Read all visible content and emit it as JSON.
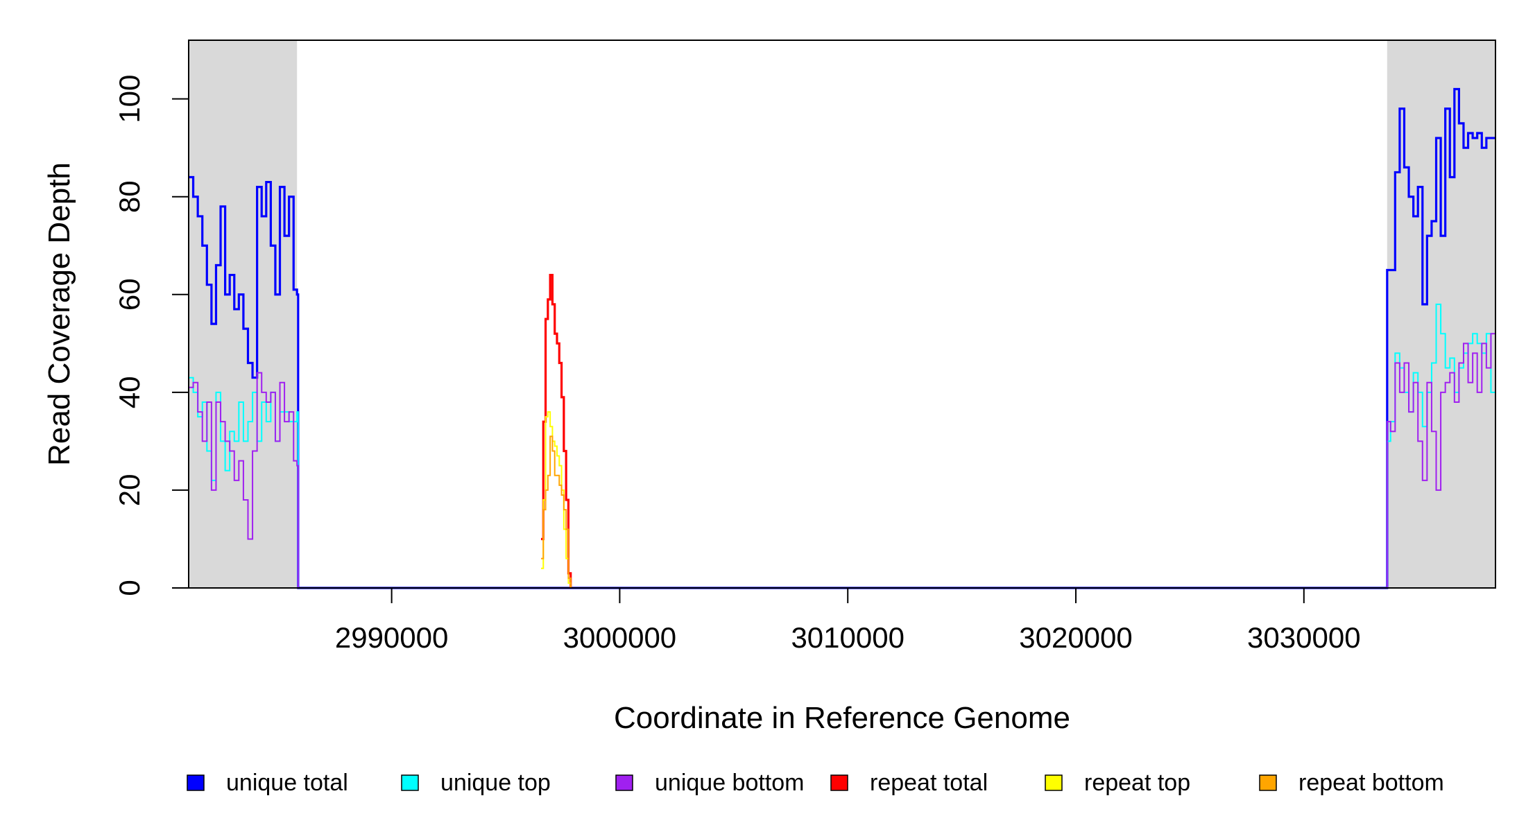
{
  "chart_data": {
    "type": "line",
    "xlabel": "Coordinate in Reference Genome",
    "ylabel": "Read Coverage Depth",
    "xlim": [
      2981100,
      3038400
    ],
    "ylim": [
      0,
      112
    ],
    "xticks": [
      2990000,
      3000000,
      3010000,
      3020000,
      3030000
    ],
    "xtick_labels": [
      "2990000",
      "3000000",
      "3010000",
      "3020000",
      "3030000"
    ],
    "yticks": [
      0,
      20,
      40,
      60,
      80,
      100
    ],
    "ytick_labels": [
      "0",
      "20",
      "40",
      "60",
      "80",
      "100"
    ],
    "shaded_regions": [
      [
        2981100,
        2985850
      ],
      [
        3033650,
        3038400
      ]
    ],
    "shade_color": "#d9d9d9",
    "legend": {
      "position": "bottom",
      "entries": [
        {
          "label": "unique total",
          "color": "#0000ff"
        },
        {
          "label": "unique top",
          "color": "#00ffff"
        },
        {
          "label": "unique bottom",
          "color": "#a020f0"
        },
        {
          "label": "repeat total",
          "color": "#ff0000"
        },
        {
          "label": "repeat top",
          "color": "#ffff00"
        },
        {
          "label": "repeat bottom",
          "color": "#ffa500"
        }
      ]
    },
    "series": [
      {
        "name": "unique total",
        "color": "#0000ff",
        "x": [
          2981100,
          2981300,
          2981500,
          2981700,
          2981900,
          2982100,
          2982300,
          2982500,
          2982700,
          2982900,
          2983100,
          2983300,
          2983500,
          2983700,
          2983900,
          2984100,
          2984300,
          2984500,
          2984700,
          2984900,
          2985100,
          2985300,
          2985500,
          2985700,
          2985850,
          2985900,
          2996500,
          2997000,
          2997500,
          2998000,
          3033600,
          3033650,
          3033800,
          3034000,
          3034200,
          3034400,
          3034600,
          3034800,
          3035000,
          3035200,
          3035400,
          3035600,
          3035800,
          3036000,
          3036200,
          3036400,
          3036600,
          3036800,
          3037000,
          3037200,
          3037400,
          3037600,
          3037800,
          3038000,
          3038200,
          3038400
        ],
        "y": [
          84,
          80,
          76,
          70,
          62,
          54,
          66,
          78,
          60,
          64,
          57,
          60,
          53,
          46,
          43,
          82,
          76,
          83,
          70,
          60,
          82,
          72,
          80,
          61,
          60,
          0,
          0,
          0,
          0,
          0,
          0,
          65,
          65,
          85,
          98,
          86,
          80,
          76,
          82,
          58,
          72,
          75,
          92,
          72,
          98,
          84,
          102,
          95,
          90,
          93,
          92,
          93,
          90,
          92,
          92,
          92
        ]
      },
      {
        "name": "unique top",
        "color": "#00ffff",
        "x": [
          2981100,
          2981300,
          2981500,
          2981700,
          2981900,
          2982100,
          2982300,
          2982500,
          2982700,
          2982900,
          2983100,
          2983300,
          2983500,
          2983700,
          2983900,
          2984100,
          2984300,
          2984500,
          2984700,
          2984900,
          2985100,
          2985300,
          2985500,
          2985700,
          2985850,
          2985900,
          3033600,
          3033650,
          3033800,
          3034000,
          3034200,
          3034400,
          3034600,
          3034800,
          3035000,
          3035200,
          3035400,
          3035600,
          3035800,
          3036000,
          3036200,
          3036400,
          3036600,
          3036800,
          3037000,
          3037200,
          3037400,
          3037600,
          3037800,
          3038000,
          3038200,
          3038400
        ],
        "y": [
          43,
          40,
          35,
          38,
          28,
          22,
          40,
          30,
          24,
          32,
          30,
          38,
          30,
          34,
          40,
          30,
          38,
          34,
          40,
          30,
          36,
          36,
          34,
          34,
          36,
          0,
          0,
          30,
          34,
          48,
          45,
          40,
          36,
          44,
          40,
          33,
          40,
          46,
          58,
          52,
          45,
          47,
          40,
          45,
          48,
          50,
          52,
          50,
          48,
          52,
          40,
          38
        ]
      },
      {
        "name": "unique bottom",
        "color": "#a020f0",
        "x": [
          2981100,
          2981300,
          2981500,
          2981700,
          2981900,
          2982100,
          2982300,
          2982500,
          2982700,
          2982900,
          2983100,
          2983300,
          2983500,
          2983700,
          2983900,
          2984100,
          2984300,
          2984500,
          2984700,
          2984900,
          2985100,
          2985300,
          2985500,
          2985700,
          2985850,
          2985900,
          3033600,
          3033650,
          3033800,
          3034000,
          3034200,
          3034400,
          3034600,
          3034800,
          3035000,
          3035200,
          3035400,
          3035600,
          3035800,
          3036000,
          3036200,
          3036400,
          3036600,
          3036800,
          3037000,
          3037200,
          3037400,
          3037600,
          3037800,
          3038000,
          3038200,
          3038400
        ],
        "y": [
          41,
          42,
          36,
          30,
          38,
          20,
          38,
          34,
          30,
          28,
          22,
          26,
          18,
          10,
          28,
          44,
          40,
          38,
          40,
          30,
          42,
          34,
          36,
          26,
          25,
          0,
          0,
          34,
          32,
          46,
          40,
          46,
          36,
          42,
          30,
          22,
          42,
          32,
          20,
          40,
          42,
          44,
          38,
          46,
          50,
          42,
          48,
          40,
          50,
          45,
          52,
          52
        ]
      },
      {
        "name": "repeat total",
        "color": "#ff0000",
        "x": [
          2996550,
          2996650,
          2996750,
          2996850,
          2996950,
          2997050,
          2997150,
          2997250,
          2997350,
          2997450,
          2997550,
          2997650,
          2997750,
          2997850
        ],
        "y": [
          10,
          34,
          55,
          59,
          64,
          58,
          52,
          50,
          46,
          39,
          28,
          18,
          3,
          0
        ]
      },
      {
        "name": "repeat top",
        "color": "#ffff00",
        "x": [
          2996550,
          2996650,
          2996750,
          2996850,
          2996950,
          2997050,
          2997150,
          2997250,
          2997350,
          2997450,
          2997550,
          2997650,
          2997750,
          2997850
        ],
        "y": [
          4,
          18,
          35,
          36,
          33,
          30,
          29,
          27,
          25,
          20,
          12,
          6,
          1,
          0
        ]
      },
      {
        "name": "repeat bottom",
        "color": "#ffa500",
        "x": [
          2996550,
          2996650,
          2996750,
          2996850,
          2996950,
          2997050,
          2997150,
          2997250,
          2997350,
          2997450,
          2997550,
          2997650,
          2997750,
          2997850
        ],
        "y": [
          6,
          16,
          20,
          23,
          31,
          28,
          23,
          23,
          21,
          19,
          16,
          12,
          2,
          0
        ]
      }
    ]
  }
}
